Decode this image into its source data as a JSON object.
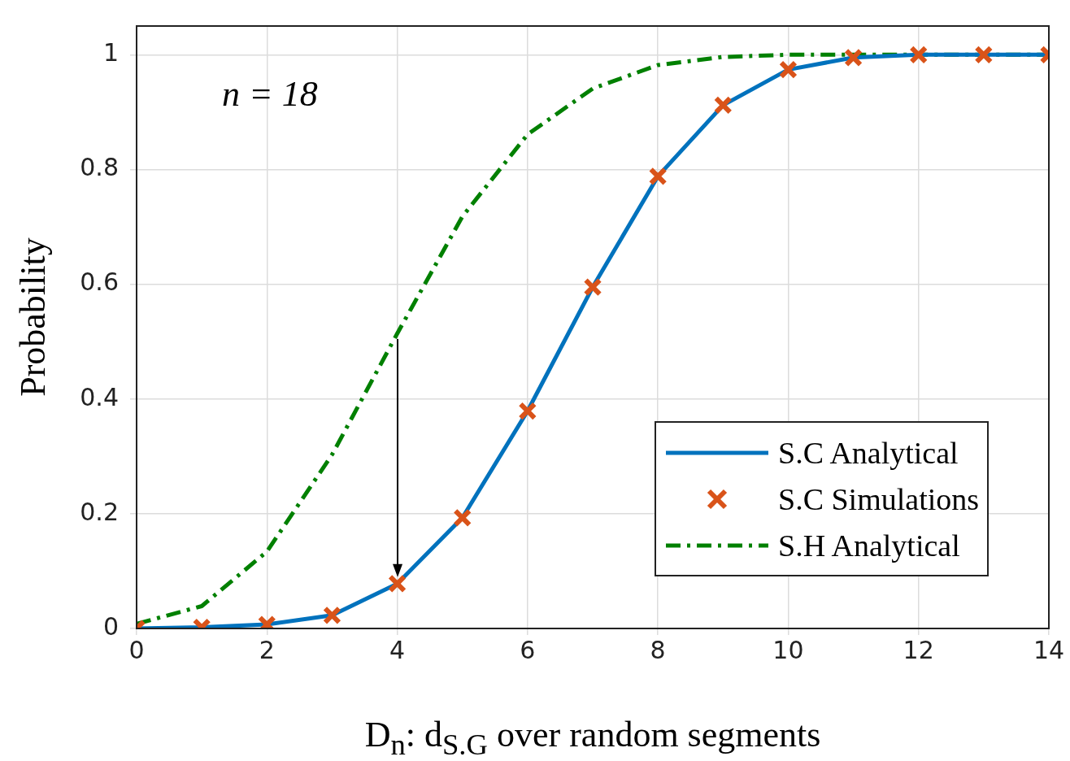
{
  "chart_data": {
    "type": "line",
    "xlabel": "D$_{n}$: d$_{S.G}$ over random segments",
    "ylabel": "Probability",
    "annotations": [
      "n = 18"
    ],
    "x": [
      0,
      1,
      2,
      3,
      4,
      5,
      6,
      7,
      8,
      9,
      10,
      11,
      12,
      13,
      14
    ],
    "series": [
      {
        "name": "S.C Analytical",
        "type": "line",
        "color": "#0072bd",
        "marker": "none",
        "line_style": "solid",
        "values": [
          0,
          0.002,
          0.007,
          0.023,
          0.078,
          0.193,
          0.379,
          0.595,
          0.788,
          0.912,
          0.974,
          0.995,
          1,
          1,
          1
        ]
      },
      {
        "name": "S.C Simulations",
        "type": "scatter",
        "color": "#d95319",
        "marker": "cross",
        "values": [
          0,
          0.002,
          0.007,
          0.023,
          0.078,
          0.193,
          0.379,
          0.595,
          0.788,
          0.912,
          0.974,
          0.995,
          1,
          1,
          1
        ]
      },
      {
        "name": "S.H Analytical",
        "type": "line",
        "color": "#008000",
        "marker": "none",
        "line_style": "dashed",
        "values": [
          0.008,
          0.039,
          0.134,
          0.303,
          0.514,
          0.718,
          0.861,
          0.941,
          0.982,
          0.996,
          1,
          1,
          1,
          1,
          1
        ]
      }
    ],
    "xlim": [
      0,
      14
    ],
    "xticks": [
      0,
      2,
      4,
      6,
      8,
      10,
      12,
      14
    ],
    "ylim": [
      0,
      1.05
    ],
    "yticks": [
      0,
      0.2,
      0.4,
      0.6,
      0.8,
      1
    ],
    "grid": true,
    "legend": "bottom right"
  }
}
